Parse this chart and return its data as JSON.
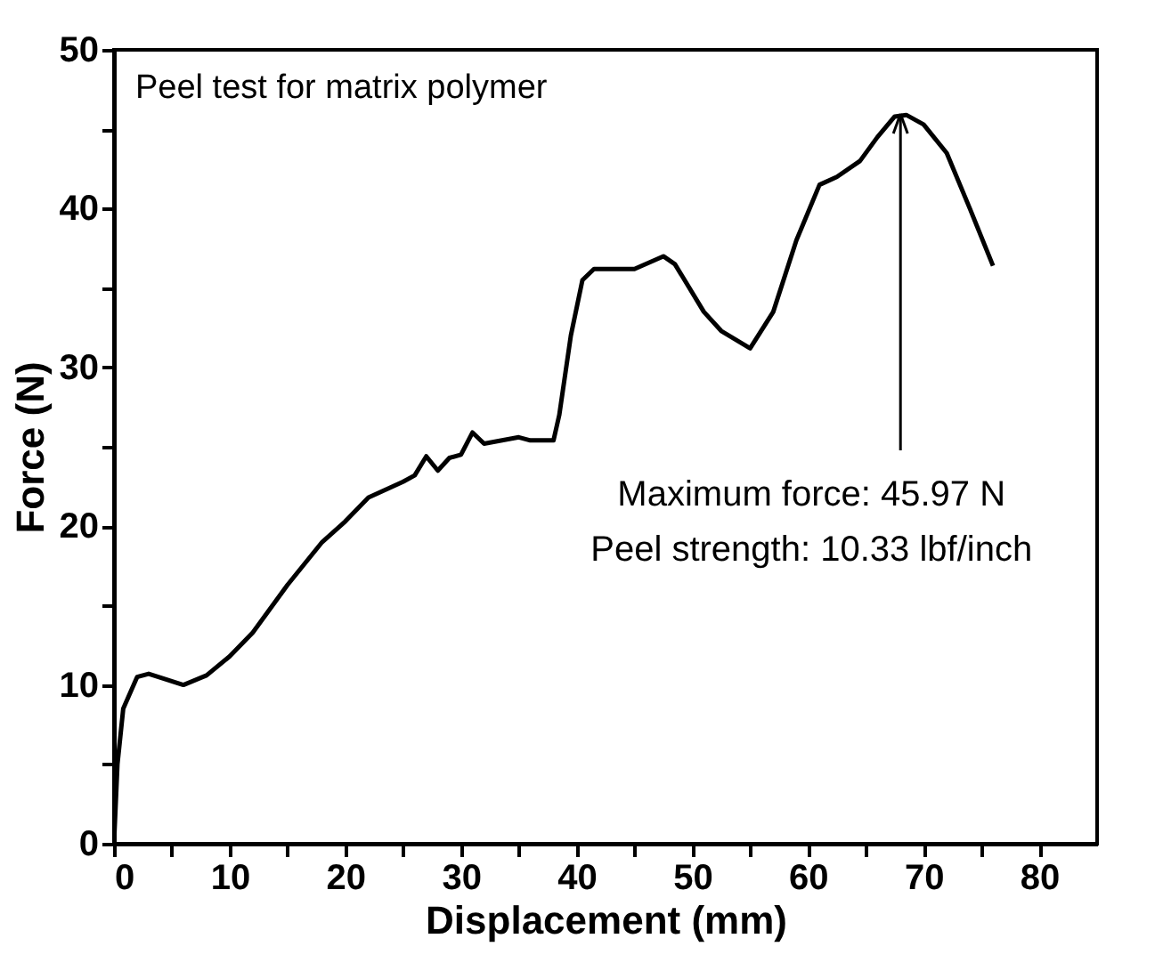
{
  "chart_data": {
    "type": "line",
    "title": "Peel test for matrix polymer",
    "xlabel": "Displacement (mm)",
    "ylabel": "Force (N)",
    "xlim": [
      0,
      85
    ],
    "ylim": [
      0,
      50
    ],
    "xticks": [
      0,
      {
        "value": 5,
        "label": null
      },
      10,
      {
        "value": 15,
        "label": null
      },
      20,
      {
        "value": 25,
        "label": null
      },
      30,
      {
        "value": 35,
        "label": null
      },
      40,
      {
        "value": 45,
        "label": null
      },
      50,
      {
        "value": 55,
        "label": null
      },
      60,
      {
        "value": 65,
        "label": null
      },
      70,
      {
        "value": 75,
        "label": null
      },
      80
    ],
    "yticks": [
      0,
      {
        "value": 5,
        "label": null
      },
      10,
      {
        "value": 15,
        "label": null
      },
      20,
      {
        "value": 25,
        "label": null
      },
      30,
      {
        "value": 35,
        "label": null
      },
      40,
      {
        "value": 45,
        "label": null
      },
      50
    ],
    "grid": false,
    "marker": "none",
    "line_style": "solid",
    "series": [
      {
        "color": "#000000",
        "x": [
          0,
          0.3,
          0.8,
          2,
          3,
          6,
          8,
          10,
          12,
          15,
          18,
          20,
          22,
          25,
          26,
          27,
          28,
          29,
          30,
          31,
          32,
          35,
          36,
          38,
          38.5,
          39.5,
          40.5,
          41.5,
          45,
          47.5,
          48.5,
          51,
          52.5,
          55,
          57,
          59,
          61,
          62.5,
          64.5,
          66,
          67.5,
          68.5,
          70,
          72,
          74,
          76
        ],
        "values": [
          0,
          5,
          8.5,
          10.5,
          10.7,
          10,
          10.6,
          11.8,
          13.3,
          16.3,
          19,
          20.3,
          21.8,
          22.8,
          23.2,
          24.4,
          23.5,
          24.3,
          24.5,
          25.9,
          25.2,
          25.6,
          25.4,
          25.4,
          27,
          32,
          35.5,
          36.2,
          36.2,
          37,
          36.5,
          33.5,
          32.3,
          31.2,
          33.5,
          38,
          41.5,
          42,
          43,
          44.5,
          45.8,
          45.9,
          45.3,
          43.5,
          40,
          36.4
        ]
      }
    ],
    "annotations": [
      {
        "text": "Maximum force: 45.97 N",
        "x": 68,
        "y": 45.97
      },
      "Peel strength: 10.33 lbf/inch"
    ]
  }
}
